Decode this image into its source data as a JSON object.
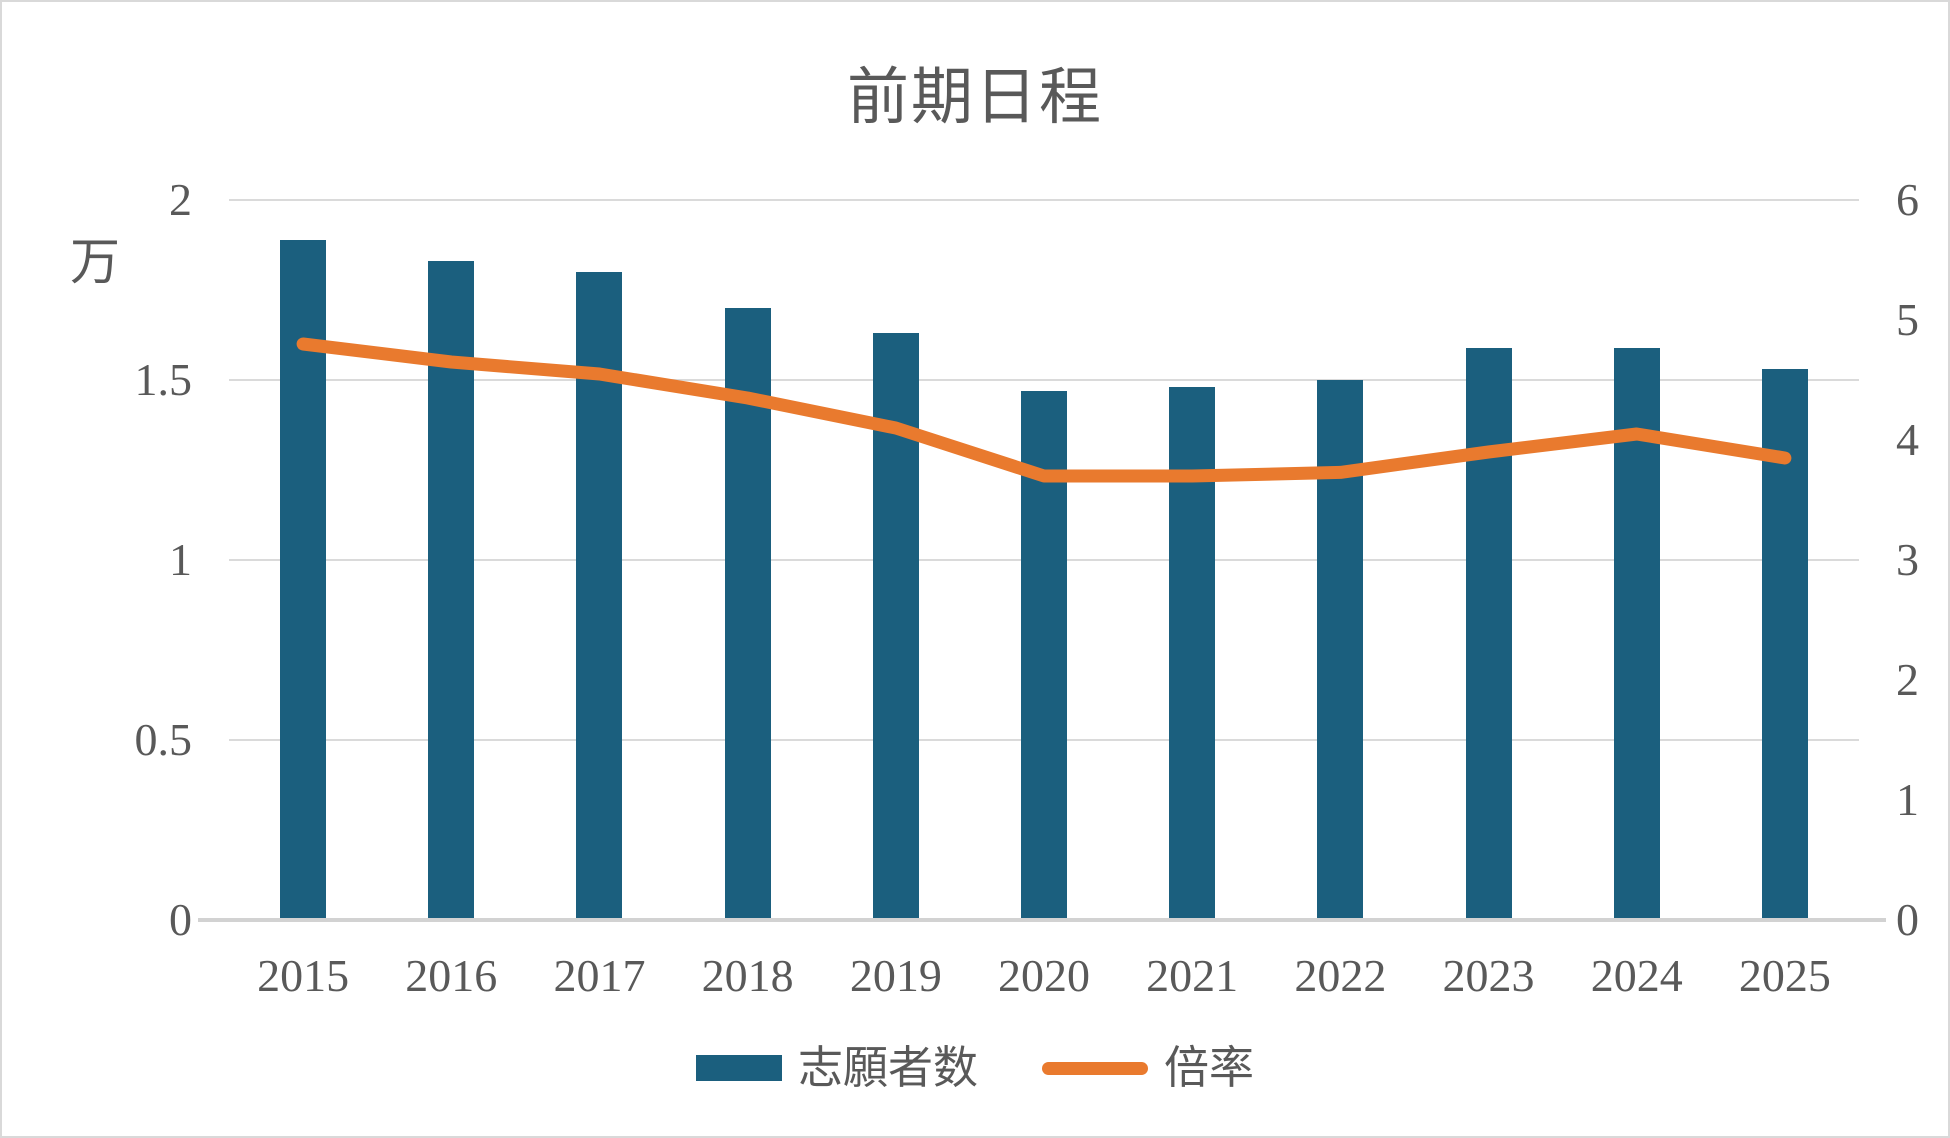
{
  "chart": {
    "title": "前期日程",
    "left_axis_unit": "万",
    "legend": {
      "bar_label": "志願者数",
      "line_label": "倍率"
    }
  },
  "chart_data": {
    "type": "bar+line combo",
    "title": "前期日程",
    "categories": [
      "2015",
      "2016",
      "2017",
      "2018",
      "2019",
      "2020",
      "2021",
      "2022",
      "2023",
      "2024",
      "2025"
    ],
    "series": [
      {
        "name": "志願者数",
        "type": "bar",
        "axis": "left",
        "unit": "万",
        "color": "#1b5f7e",
        "values": [
          1.89,
          1.83,
          1.8,
          1.7,
          1.63,
          1.47,
          1.48,
          1.5,
          1.59,
          1.59,
          1.53
        ]
      },
      {
        "name": "倍率",
        "type": "line",
        "axis": "right",
        "color": "#e97a2e",
        "values": [
          4.8,
          4.65,
          4.55,
          4.35,
          4.1,
          3.7,
          3.7,
          3.73,
          3.9,
          4.05,
          3.85
        ]
      }
    ],
    "left_axis": {
      "range": [
        0,
        2
      ],
      "ticks": [
        2,
        1.5,
        1,
        0.5,
        0
      ],
      "unit": "万"
    },
    "right_axis": {
      "range": [
        0,
        6
      ],
      "ticks": [
        6,
        5,
        4,
        3,
        2,
        1,
        0
      ]
    },
    "grid": "horizontal gridlines at left-axis major ticks",
    "legend_position": "bottom",
    "colors": {
      "bar": "#1b5f7e",
      "line": "#e97a2e",
      "gridline": "#dadada",
      "axis_line": "#d2d2d2",
      "text": "#595959",
      "background": "#ffffff",
      "border": "#d9d9d9"
    }
  }
}
